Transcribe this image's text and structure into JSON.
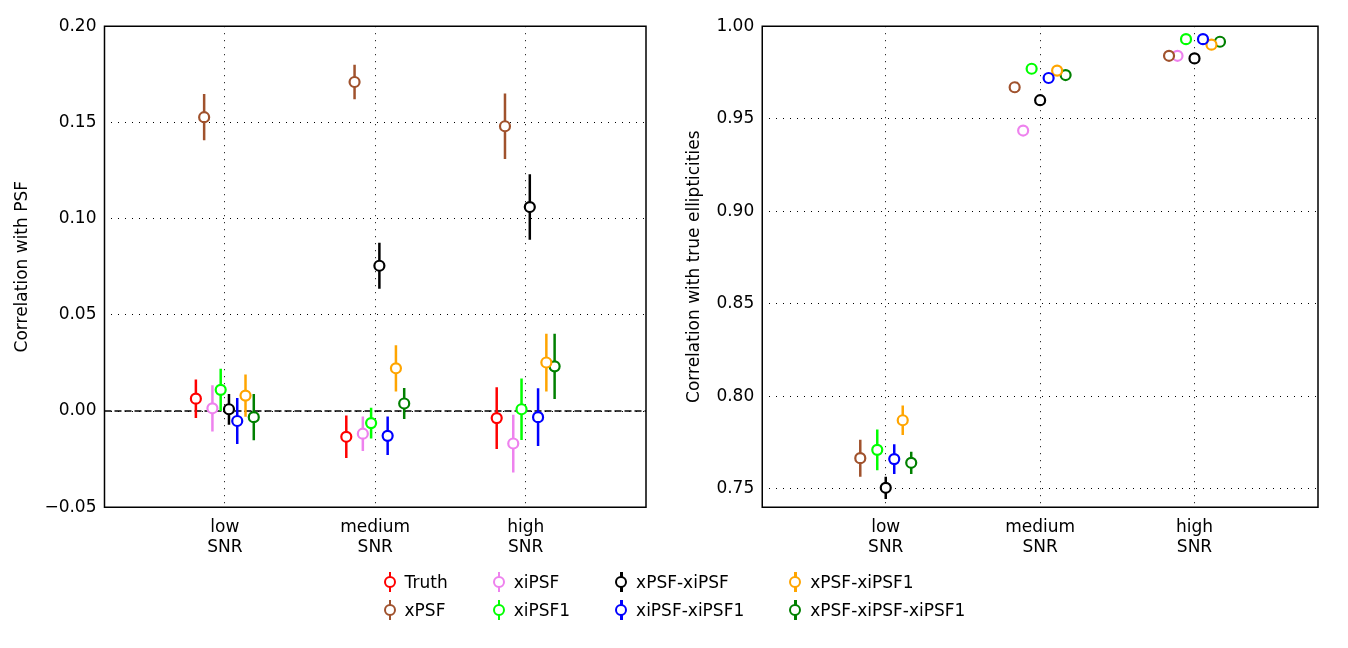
{
  "chart_data": [
    {
      "type": "scatter",
      "ylabel": "Correlation with PSF",
      "categories": [
        "low\nSNR",
        "medium\nSNR",
        "high\nSNR"
      ],
      "ylim": [
        -0.05,
        0.2
      ],
      "yticks": [
        {
          "value": -0.05,
          "label": "−0.05"
        },
        {
          "value": 0,
          "label": "0.00"
        },
        {
          "value": 0.05,
          "label": "0.05"
        },
        {
          "value": 0.1,
          "label": "0.10"
        },
        {
          "value": 0.15,
          "label": "0.15"
        },
        {
          "value": 0.2,
          "label": "0.20"
        }
      ],
      "grid": true,
      "marker": "circle",
      "legend": "bottom",
      "ref_lines": [
        {
          "axis": "y",
          "value": 0,
          "color": "#000000",
          "line_style": "dashed"
        }
      ],
      "series": [
        {
          "name": "Truth",
          "color": "#ff0000",
          "values": [
            0.0064,
            -0.0134,
            -0.0037
          ],
          "errors": [
            0.01,
            0.011,
            0.016
          ]
        },
        {
          "name": "xPSF",
          "color": "#a0522d",
          "values": [
            0.1527,
            0.171,
            0.148
          ],
          "errors": [
            0.012,
            0.009,
            0.017
          ]
        },
        {
          "name": "xiPSF",
          "color": "#ee82ee",
          "values": [
            0.0014,
            -0.0118,
            -0.0169
          ],
          "errors": [
            0.012,
            0.009,
            0.015
          ]
        },
        {
          "name": "xiPSF1",
          "color": "#00ff00",
          "values": [
            0.011,
            -0.0063,
            0.0009
          ],
          "errors": [
            0.011,
            0.008,
            0.016
          ]
        },
        {
          "name": "xPSF-xiPSF",
          "color": "#000000",
          "values": [
            0.0009,
            0.0755,
            0.106
          ],
          "errors": [
            0.008,
            0.012,
            0.017
          ]
        },
        {
          "name": "xiPSF-xiPSF1",
          "color": "#0000ff",
          "values": [
            -0.0052,
            -0.0129,
            -0.0032
          ],
          "errors": [
            0.012,
            0.01,
            0.015
          ]
        },
        {
          "name": "xPSF-xiPSF1",
          "color": "#ffa500",
          "values": [
            0.008,
            0.0222,
            0.0252
          ],
          "errors": [
            0.011,
            0.012,
            0.015
          ]
        },
        {
          "name": "xPSF-xiPSF-xiPSF1",
          "color": "#008000",
          "values": [
            -0.0032,
            0.0039,
            0.0232
          ],
          "errors": [
            0.012,
            0.008,
            0.017
          ]
        }
      ]
    },
    {
      "type": "scatter",
      "ylabel": "Correlation with true ellipticities",
      "categories": [
        "low\nSNR",
        "medium\nSNR",
        "high\nSNR"
      ],
      "ylim": [
        0.74,
        1.0
      ],
      "yticks": [
        {
          "value": 0.75,
          "label": "0.75"
        },
        {
          "value": 0.8,
          "label": "0.80"
        },
        {
          "value": 0.85,
          "label": "0.85"
        },
        {
          "value": 0.9,
          "label": "0.90"
        },
        {
          "value": 0.95,
          "label": "0.95"
        },
        {
          "value": 1.0,
          "label": "1.00"
        }
      ],
      "grid": true,
      "marker": "circle",
      "series": [
        {
          "color": "#a0522d",
          "values": [
            0.7665,
            0.967,
            0.984
          ],
          "errors": [
            0.01,
            null,
            null
          ]
        },
        {
          "color": "#ee82ee",
          "values": [
            null,
            0.9436,
            0.984
          ],
          "errors": [
            null,
            null,
            null
          ]
        },
        {
          "color": "#00ff00",
          "values": [
            0.771,
            0.977,
            0.993
          ],
          "errors": [
            0.011,
            null,
            null
          ]
        },
        {
          "color": "#000000",
          "values": [
            0.7505,
            0.96,
            0.9826
          ],
          "errors": [
            0.006,
            null,
            null
          ]
        },
        {
          "color": "#0000ff",
          "values": [
            0.766,
            0.972,
            0.993
          ],
          "errors": [
            0.008,
            null,
            null
          ]
        },
        {
          "color": "#ffa500",
          "values": [
            0.787,
            0.976,
            0.99
          ],
          "errors": [
            0.008,
            null,
            null
          ]
        },
        {
          "color": "#008000",
          "values": [
            0.764,
            0.9736,
            0.9916
          ],
          "errors": [
            0.006,
            null,
            null
          ]
        }
      ]
    }
  ]
}
